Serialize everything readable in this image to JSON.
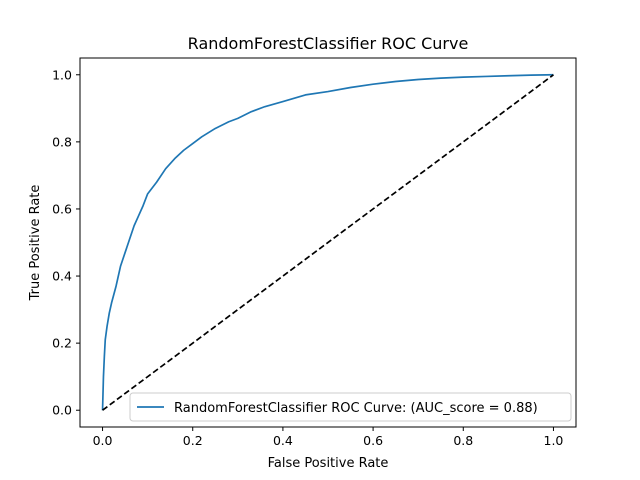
{
  "chart_data": {
    "type": "line",
    "title": "RandomForestClassifier ROC Curve",
    "xlabel": "False Positive Rate",
    "ylabel": "True Positive Rate",
    "xlim": [
      -0.05,
      1.05
    ],
    "ylim": [
      -0.05,
      1.05
    ],
    "x_ticks": [
      0.0,
      0.2,
      0.4,
      0.6,
      0.8,
      1.0
    ],
    "y_ticks": [
      0.0,
      0.2,
      0.4,
      0.6,
      0.8,
      1.0
    ],
    "x_tick_labels": [
      "0.0",
      "0.2",
      "0.4",
      "0.6",
      "0.8",
      "1.0"
    ],
    "y_tick_labels": [
      "0.0",
      "0.2",
      "0.4",
      "0.6",
      "0.8",
      "1.0"
    ],
    "grid": false,
    "legend_position": "lower-right",
    "series": [
      {
        "name": "RandomForestClassifier ROC Curve: (AUC_score = 0.88)",
        "color": "#1f77b4",
        "style": "solid",
        "x": [
          0.0,
          0.002,
          0.004,
          0.006,
          0.01,
          0.015,
          0.02,
          0.03,
          0.04,
          0.05,
          0.06,
          0.07,
          0.08,
          0.09,
          0.1,
          0.12,
          0.14,
          0.16,
          0.18,
          0.2,
          0.22,
          0.25,
          0.28,
          0.3,
          0.33,
          0.36,
          0.4,
          0.45,
          0.5,
          0.55,
          0.6,
          0.65,
          0.7,
          0.75,
          0.8,
          0.85,
          0.9,
          0.95,
          1.0
        ],
        "y": [
          0.0,
          0.1,
          0.16,
          0.21,
          0.25,
          0.29,
          0.32,
          0.37,
          0.43,
          0.47,
          0.51,
          0.55,
          0.58,
          0.61,
          0.645,
          0.68,
          0.72,
          0.75,
          0.775,
          0.795,
          0.815,
          0.84,
          0.86,
          0.87,
          0.89,
          0.905,
          0.92,
          0.94,
          0.95,
          0.962,
          0.972,
          0.98,
          0.986,
          0.99,
          0.993,
          0.995,
          0.997,
          0.999,
          1.0
        ]
      },
      {
        "name": "",
        "color": "#000000",
        "style": "dashed",
        "x": [
          0.0,
          1.0
        ],
        "y": [
          0.0,
          1.0
        ]
      }
    ]
  }
}
